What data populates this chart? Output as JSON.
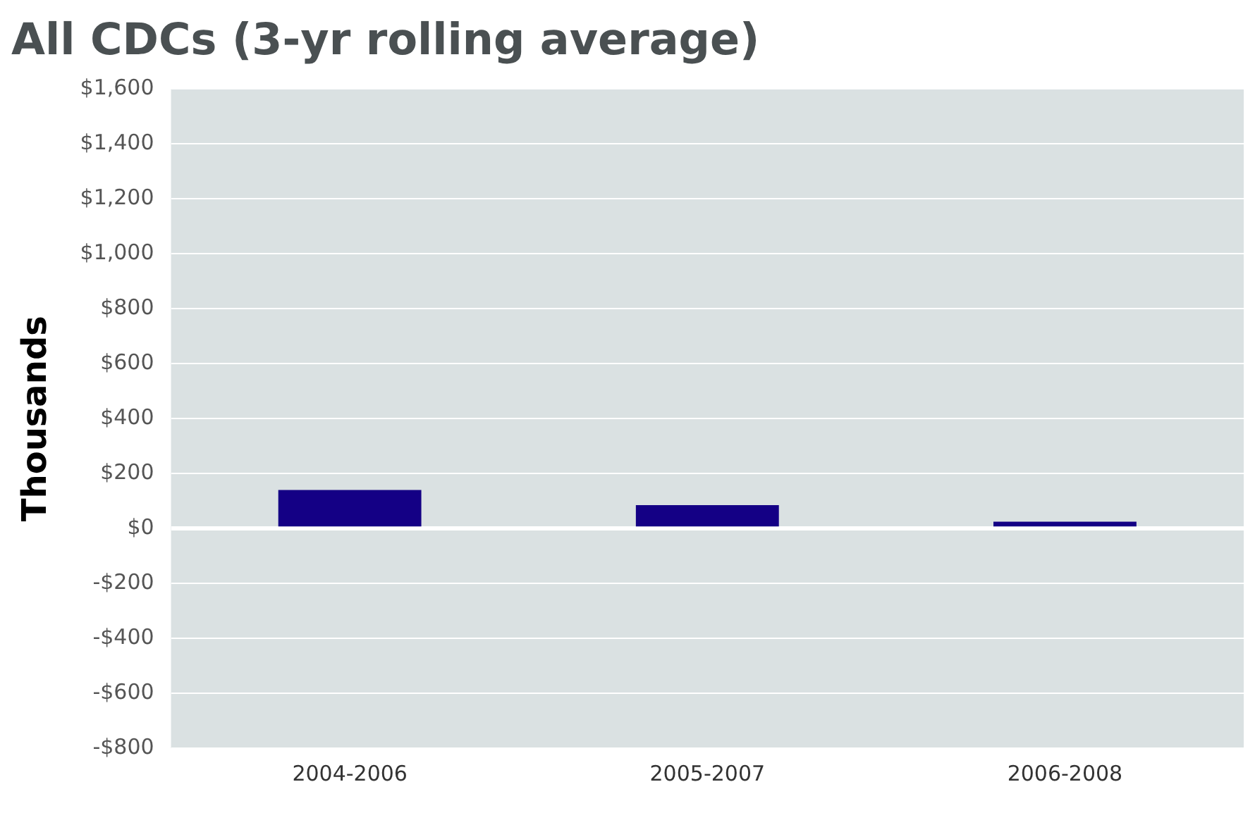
{
  "chart_data": {
    "type": "bar",
    "title": "All CDCs (3-yr rolling average)",
    "ylabel": "Thousands",
    "categories": [
      "2004-2006",
      "2005-2007",
      "2006-2008"
    ],
    "values": [
      140,
      85,
      25
    ],
    "color": "#140085",
    "ylim": [
      -800,
      1600
    ],
    "yticks": [
      {
        "value": -800,
        "label": "-$800"
      },
      {
        "value": -600,
        "label": "-$600"
      },
      {
        "value": -400,
        "label": "-$400"
      },
      {
        "value": -200,
        "label": "-$200"
      },
      {
        "value": 0,
        "label": "$0"
      },
      {
        "value": 200,
        "label": "$200"
      },
      {
        "value": 400,
        "label": "$400"
      },
      {
        "value": 600,
        "label": "$600"
      },
      {
        "value": 800,
        "label": "$800"
      },
      {
        "value": 1000,
        "label": "$1,000"
      },
      {
        "value": 1200,
        "label": "$1,200"
      },
      {
        "value": 1400,
        "label": "$1,400"
      },
      {
        "value": 1600,
        "label": "$1,600"
      }
    ],
    "grid": "y",
    "legend": false
  }
}
